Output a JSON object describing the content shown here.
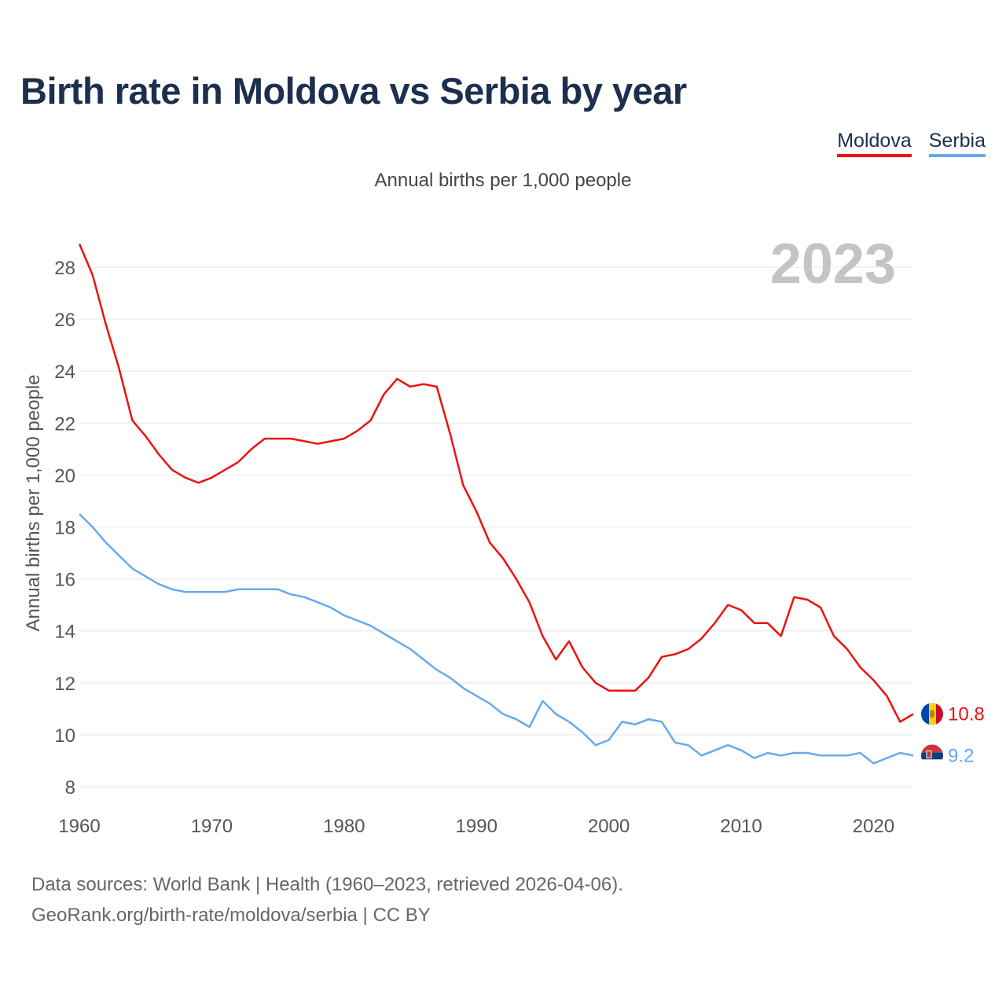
{
  "title": "Birth rate in Moldova vs Serbia by year",
  "subtitle": "Annual births per 1,000 people",
  "legend": [
    {
      "label": "Moldova",
      "color": "#ee1111"
    },
    {
      "label": "Serbia",
      "color": "#66aaee"
    }
  ],
  "footer": {
    "line1": "Data sources: World Bank | Health (1960–2023, retrieved 2026-04-06).",
    "line2": "GeoRank.org/birth-rate/moldova/serbia | CC BY"
  },
  "chart_data": {
    "type": "line",
    "title": "Birth rate in Moldova vs Serbia by year",
    "ylabel": "Annual births per 1,000 people",
    "xlabel": "",
    "year_overlay": "2023",
    "xlim": [
      1960,
      2023
    ],
    "ylim": [
      8,
      28
    ],
    "x_ticks": [
      1960,
      1970,
      1980,
      1990,
      2000,
      2010,
      2020
    ],
    "y_ticks": [
      8,
      10,
      12,
      14,
      16,
      18,
      20,
      22,
      24,
      26,
      28
    ],
    "grid": true,
    "x": [
      1960,
      1961,
      1962,
      1963,
      1964,
      1965,
      1966,
      1967,
      1968,
      1969,
      1970,
      1971,
      1972,
      1973,
      1974,
      1975,
      1976,
      1977,
      1978,
      1979,
      1980,
      1981,
      1982,
      1983,
      1984,
      1985,
      1986,
      1987,
      1988,
      1989,
      1990,
      1991,
      1992,
      1993,
      1994,
      1995,
      1996,
      1997,
      1998,
      1999,
      2000,
      2001,
      2002,
      2003,
      2004,
      2005,
      2006,
      2007,
      2008,
      2009,
      2010,
      2011,
      2012,
      2013,
      2014,
      2015,
      2016,
      2017,
      2018,
      2019,
      2020,
      2021,
      2022,
      2023
    ],
    "series": [
      {
        "name": "Moldova",
        "color": "#ee1111",
        "flag": "moldova-flag-icon",
        "end_label": "10.8",
        "values": [
          28.9,
          27.7,
          25.8,
          24.1,
          22.1,
          21.5,
          20.8,
          20.2,
          19.9,
          19.7,
          19.9,
          20.2,
          20.5,
          21.0,
          21.4,
          21.4,
          21.4,
          21.3,
          21.2,
          21.3,
          21.4,
          21.7,
          22.1,
          23.1,
          23.7,
          23.4,
          23.5,
          23.4,
          21.6,
          19.6,
          18.6,
          17.4,
          16.8,
          16.0,
          15.1,
          13.8,
          12.9,
          13.6,
          12.6,
          12.0,
          11.7,
          11.7,
          11.7,
          12.2,
          13.0,
          13.1,
          13.3,
          13.7,
          14.3,
          15.0,
          14.8,
          14.3,
          14.3,
          13.8,
          15.3,
          15.2,
          14.9,
          13.8,
          13.3,
          12.6,
          12.1,
          11.5,
          10.5,
          10.8
        ]
      },
      {
        "name": "Serbia",
        "color": "#66aaee",
        "flag": "serbia-flag-icon",
        "end_label": "9.2",
        "values": [
          18.5,
          18.0,
          17.4,
          16.9,
          16.4,
          16.1,
          15.8,
          15.6,
          15.5,
          15.5,
          15.5,
          15.5,
          15.6,
          15.6,
          15.6,
          15.6,
          15.4,
          15.3,
          15.1,
          14.9,
          14.6,
          14.4,
          14.2,
          13.9,
          13.6,
          13.3,
          12.9,
          12.5,
          12.2,
          11.8,
          11.5,
          11.2,
          10.8,
          10.6,
          10.3,
          11.3,
          10.8,
          10.5,
          10.1,
          9.6,
          9.8,
          10.5,
          10.4,
          10.6,
          10.5,
          9.7,
          9.6,
          9.2,
          9.4,
          9.6,
          9.4,
          9.1,
          9.3,
          9.2,
          9.3,
          9.3,
          9.2,
          9.2,
          9.2,
          9.3,
          8.9,
          9.1,
          9.3,
          9.2
        ]
      }
    ]
  }
}
